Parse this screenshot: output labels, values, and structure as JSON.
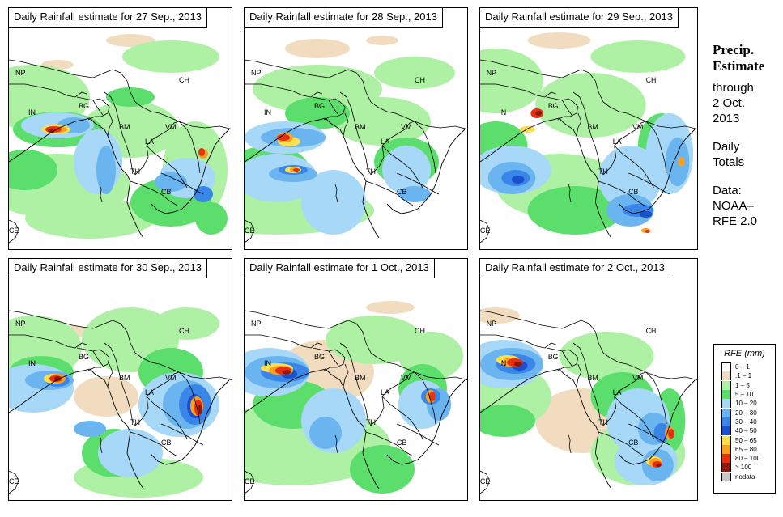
{
  "panels": [
    {
      "title": "Daily Rainfall estimate for  27 Sep., 2013",
      "country_labels": [
        "NP",
        "CH",
        "IN",
        "BG",
        "BM",
        "VM",
        "LA",
        "TH",
        "CB",
        "CE"
      ]
    },
    {
      "title": "Daily Rainfall estimate for  28 Sep., 2013",
      "country_labels": [
        "NP",
        "CH",
        "IN",
        "BG",
        "BM",
        "VM",
        "LA",
        "TH",
        "CB",
        "CE"
      ]
    },
    {
      "title": "Daily Rainfall estimate for  29 Sep., 2013",
      "country_labels": [
        "NP",
        "CH",
        "IN",
        "BG",
        "BM",
        "VM",
        "LA",
        "TH",
        "CB",
        "CE"
      ]
    },
    {
      "title": "Daily Rainfall estimate for  30 Sep., 2013",
      "country_labels": [
        "NP",
        "CH",
        "IN",
        "BG",
        "BM",
        "VM",
        "LA",
        "TH",
        "CB",
        "CE"
      ]
    },
    {
      "title": "Daily Rainfall estimate for  1 Oct., 2013",
      "country_labels": [
        "NP",
        "CH",
        "IN",
        "BG",
        "BM",
        "VM",
        "LA",
        "TH",
        "CB",
        "CE"
      ]
    },
    {
      "title": "Daily Rainfall estimate for  2 Oct., 2013",
      "country_labels": [
        "NP",
        "CH",
        "IN",
        "BG",
        "BM",
        "VM",
        "LA",
        "TH",
        "CB",
        "CE"
      ]
    }
  ],
  "sidebar": {
    "title_line1": "Precip.",
    "title_line2": "Estimate",
    "through": "through",
    "date_line1": "2 Oct.",
    "date_line2": "2013",
    "daily_line1": "Daily",
    "daily_line2": "Totals",
    "data_line1": "Data:",
    "data_line2": "NOAA–",
    "data_line3": "RFE 2.0"
  },
  "legend": {
    "title": "RFE (mm)",
    "items": [
      {
        "label": "0 – 1",
        "color": "#ffffff"
      },
      {
        "label": ".1 – 1",
        "color": "#f2dcc0"
      },
      {
        "label": "1 – 5",
        "color": "#aef0a4"
      },
      {
        "label": "5 – 10",
        "color": "#5cde6c"
      },
      {
        "label": "10 – 20",
        "color": "#a8d8f8"
      },
      {
        "label": "20 – 30",
        "color": "#6ab4f0"
      },
      {
        "label": "30 – 40",
        "color": "#3a86e8"
      },
      {
        "label": "40 – 50",
        "color": "#1a50d0"
      },
      {
        "label": "50 – 65",
        "color": "#f8e050"
      },
      {
        "label": "65 – 80",
        "color": "#f8a020"
      },
      {
        "label": "80 – 100",
        "color": "#e83010"
      },
      {
        "label": "> 100",
        "color": "#901808"
      },
      {
        "label": "nodata",
        "color": "#c8c8c8"
      }
    ]
  }
}
